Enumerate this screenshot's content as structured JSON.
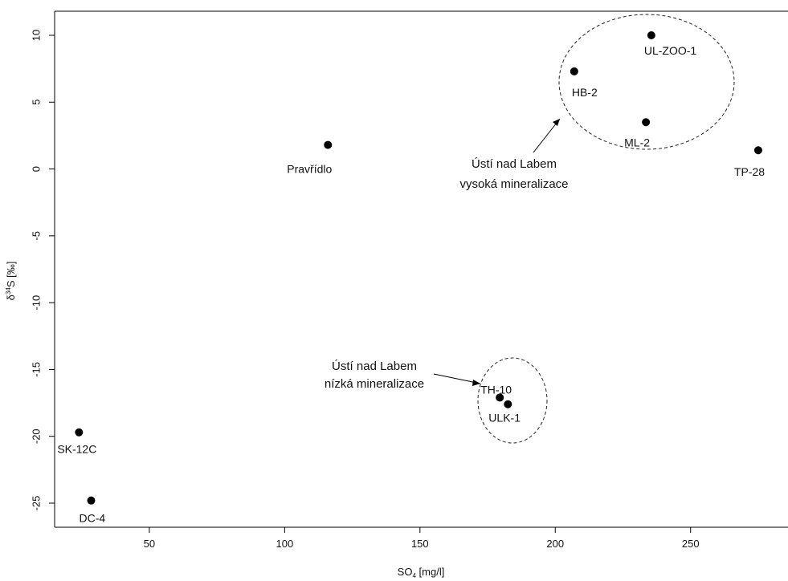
{
  "chart_data": {
    "type": "scatter",
    "xlabel": "SO",
    "xlabel_sub": "4",
    "xlabel_unit": " [mg/l]",
    "ylabel": "δ",
    "ylabel_sup": "34",
    "ylabel_unit": "S [‰]",
    "xlim": [
      15,
      286
    ],
    "ylim": [
      -26.8,
      11.8
    ],
    "xticks": [
      50,
      100,
      150,
      200,
      250
    ],
    "yticks": [
      10,
      5,
      0,
      -5,
      -10,
      -15,
      -20,
      -25
    ],
    "xtick_labels": [
      "50",
      "100",
      "150",
      "200",
      "250"
    ],
    "ytick_labels": [
      "10",
      "5",
      "0",
      "-5",
      "-10",
      "-15",
      "-20",
      "-25"
    ],
    "grid": false,
    "points": [
      {
        "label": "UL-ZOO-1",
        "x": 235.5,
        "y": 10.0
      },
      {
        "label": "HB-2",
        "x": 207.0,
        "y": 7.3
      },
      {
        "label": "ML-2",
        "x": 233.5,
        "y": 3.5
      },
      {
        "label": "TP-28",
        "x": 275.0,
        "y": 1.4
      },
      {
        "label": "Pravřídlo",
        "x": 116.0,
        "y": 1.8
      },
      {
        "label": "TH-10",
        "x": 179.5,
        "y": -17.1
      },
      {
        "label": "ULK-1",
        "x": 182.5,
        "y": -17.6
      },
      {
        "label": "SK-12C",
        "x": 24.0,
        "y": -19.7
      },
      {
        "label": "DC-4",
        "x": 28.5,
        "y": -24.8
      }
    ],
    "annotations": [
      {
        "lines": [
          "Ústí nad Labem",
          "vysoká mineralizace"
        ],
        "group": "high"
      },
      {
        "lines": [
          "Ústí nad Labem",
          "nízká mineralizace"
        ],
        "group": "low"
      }
    ]
  }
}
